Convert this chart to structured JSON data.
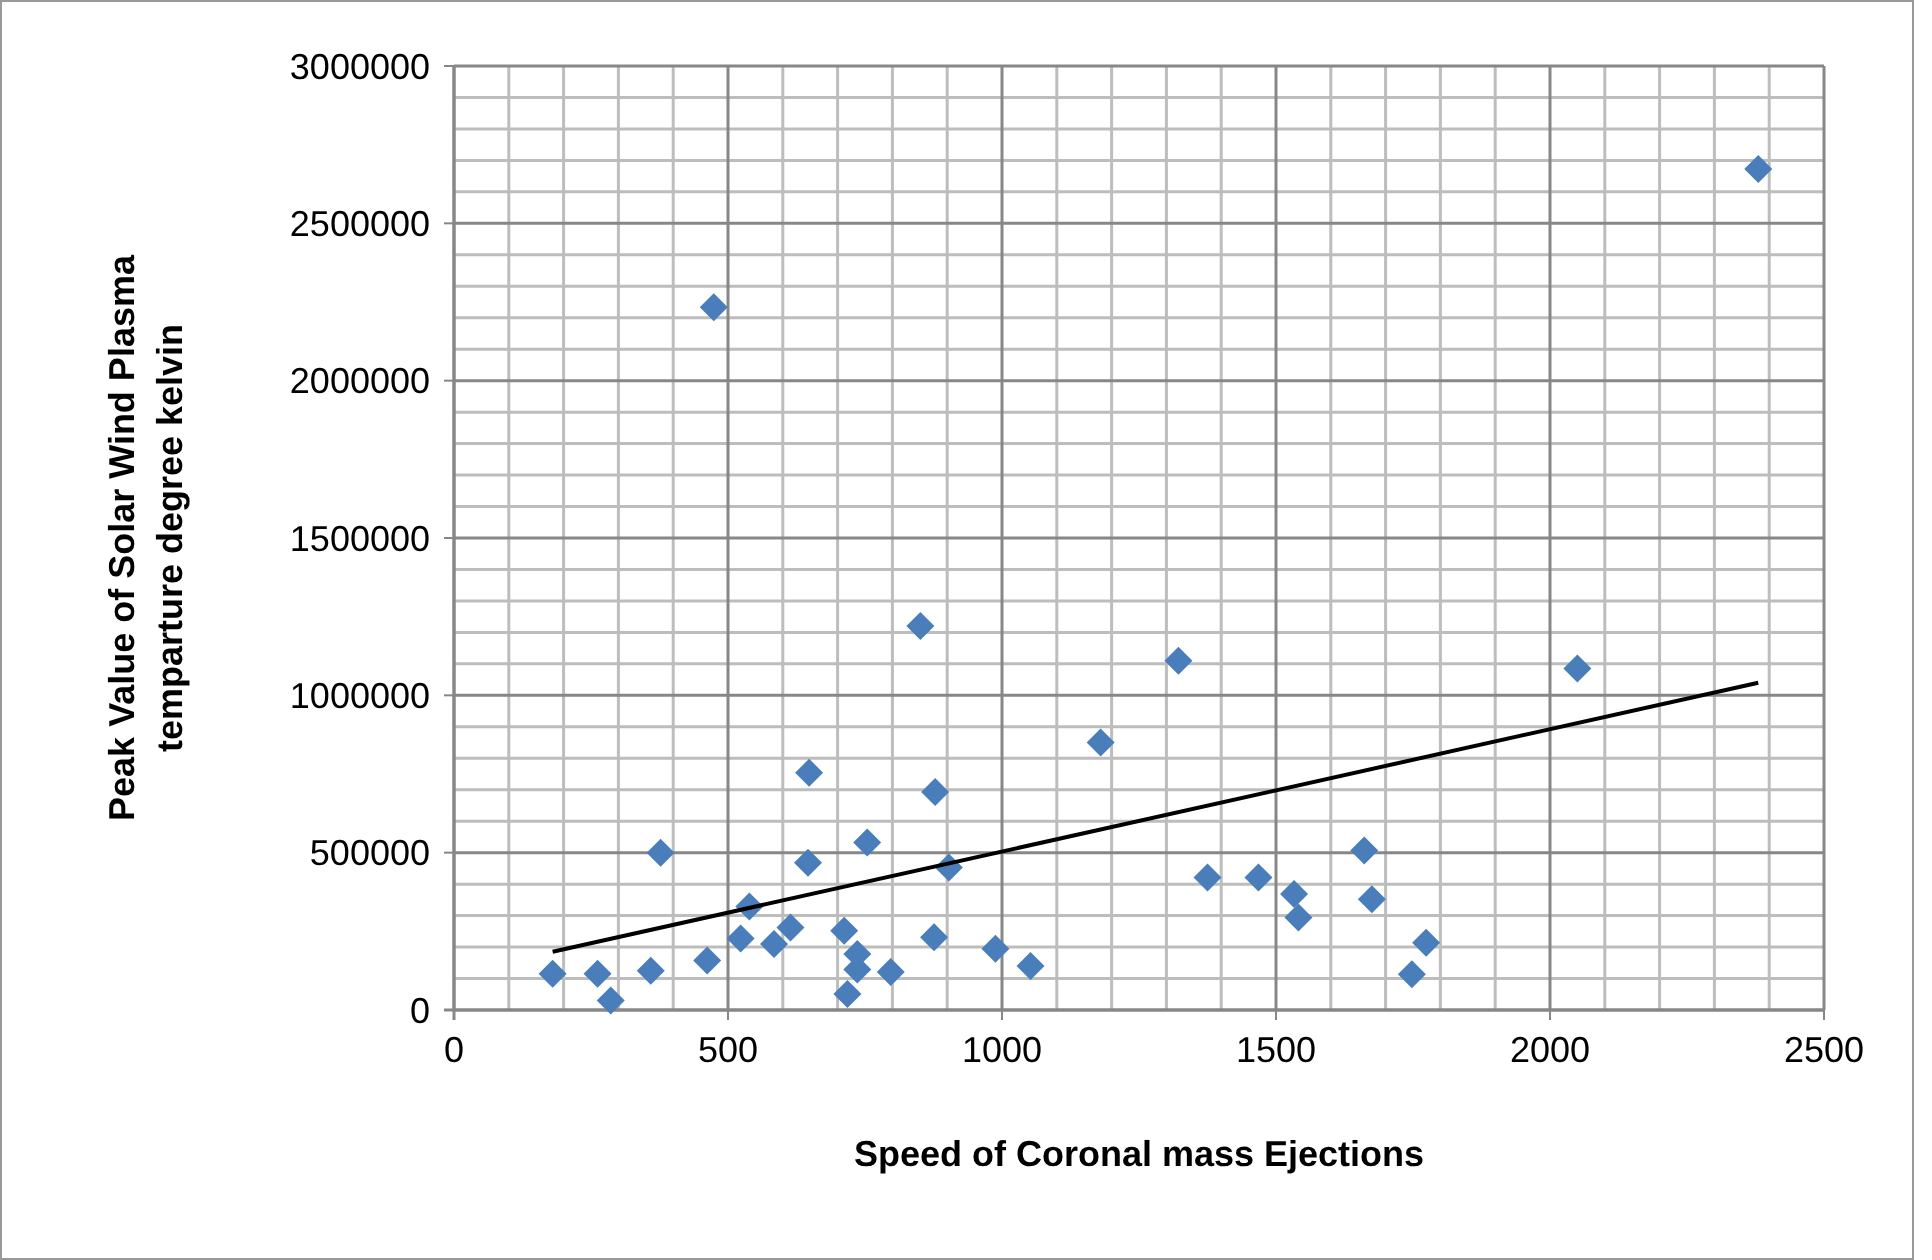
{
  "chart_data": {
    "type": "scatter",
    "xlabel": "Speed of Coronal mass Ejections",
    "ylabel": "Peak Value of Solar Wind Plasma\ntemparture degree kelvin",
    "xlim": [
      0,
      2500
    ],
    "xticks": [
      0,
      500,
      1000,
      1500,
      2000,
      2500
    ],
    "ylim": [
      0,
      3000000
    ],
    "yticks": [
      0,
      500000,
      1000000,
      1500000,
      2000000,
      2500000,
      3000000
    ],
    "grid": true,
    "marker": "diamond",
    "series": [
      {
        "color": "#4a7ebb",
        "x": [
          180,
          262,
          286,
          359,
          377,
          462,
          523,
          539,
          584,
          614,
          648,
          646,
          712,
          718,
          736,
          736,
          754,
          797,
          851,
          878,
          876,
          903,
          988,
          1052,
          1180,
          1322,
          1375,
          1468,
          1533,
          1541,
          1661,
          1675,
          1774,
          1748,
          2050,
          474,
          2380
        ],
        "values": [
          115000,
          115000,
          30000,
          125000,
          500000,
          157000,
          227000,
          329000,
          210000,
          262000,
          754000,
          468000,
          252000,
          51000,
          178000,
          129000,
          532000,
          121000,
          1220000,
          693000,
          231000,
          453000,
          195000,
          140000,
          850000,
          1110000,
          421000,
          421000,
          369000,
          294000,
          507000,
          352000,
          214000,
          114000,
          1085000,
          2233000,
          2673000
        ]
      },
      {
        "type": "line",
        "color": "#000000",
        "marker": "none",
        "x": [
          180,
          2380
        ],
        "values": [
          185000,
          1040000
        ]
      }
    ]
  }
}
